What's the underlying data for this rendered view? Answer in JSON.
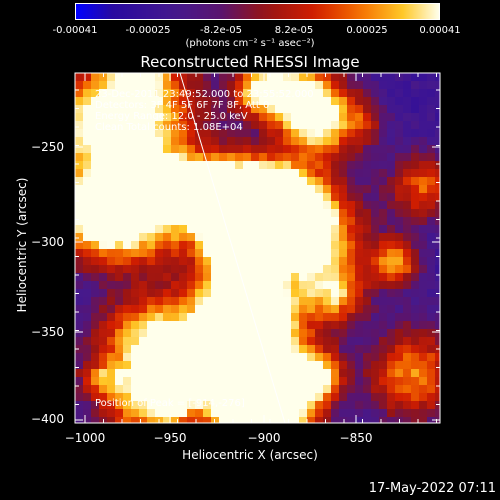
{
  "colorbar": {
    "ticks": [
      "-0.00041",
      "-0.00025",
      "-8.2e-05",
      "8.2e-05",
      "0.00025",
      "0.00041"
    ],
    "units": "(photons cm⁻² s⁻¹ asec⁻²)"
  },
  "title": "Reconstructed RHESSI Image",
  "info": {
    "line1": "23-Dec-2011 23:49:52.000 to 23:55:52.000",
    "line2": "Detectors: 3F 4F 5F 6F 7F 8F, Att 0",
    "line3": "Energy Range: 12.0 - 25.0 keV",
    "line4": "Clean    Total counts: 1.08E+04",
    "peak": "Position of Peak = [-914,-276]"
  },
  "axes": {
    "xlabel": "Heliocentric X (arcsec)",
    "ylabel": "Heliocentric Y (arcsec)",
    "xticks": [
      "−1000",
      "−950",
      "−900",
      "−850"
    ],
    "yticks": [
      "−250",
      "−300",
      "−350",
      "−400"
    ],
    "xrange": [
      -1005,
      -917
    ],
    "yrange": [
      -219,
      -420
    ]
  },
  "footer": "17-May-2022 07:11",
  "colors": {
    "background": "#000000",
    "low": "#3a1a8a",
    "mid": "#d01800",
    "high": "#ffffff"
  }
}
